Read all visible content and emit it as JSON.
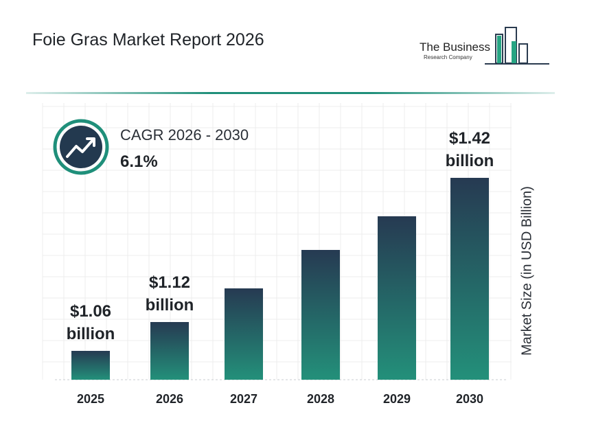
{
  "title": "Foie Gras Market Report 2026",
  "logo": {
    "line1": "The Business",
    "line2": "Research Company"
  },
  "cagr": {
    "label": "CAGR 2026 - 2030",
    "value": "6.1%"
  },
  "colors": {
    "accent": "#1f8f7a",
    "bar_top": "#263a52",
    "bar_bottom": "#23907a",
    "icon_circle": "#23394f"
  },
  "chart_data": {
    "type": "bar",
    "categories": [
      "2025",
      "2026",
      "2027",
      "2028",
      "2029",
      "2030"
    ],
    "values": [
      1.06,
      1.12,
      1.19,
      1.27,
      1.34,
      1.42
    ],
    "data_labels": [
      [
        "$1.06",
        "billion"
      ],
      [
        "$1.12",
        "billion"
      ],
      null,
      null,
      null,
      [
        "$1.42",
        "billion"
      ]
    ],
    "ylabel": "Market Size (in USD Billion)",
    "ylim": [
      1.0,
      1.6
    ],
    "grid": true
  }
}
